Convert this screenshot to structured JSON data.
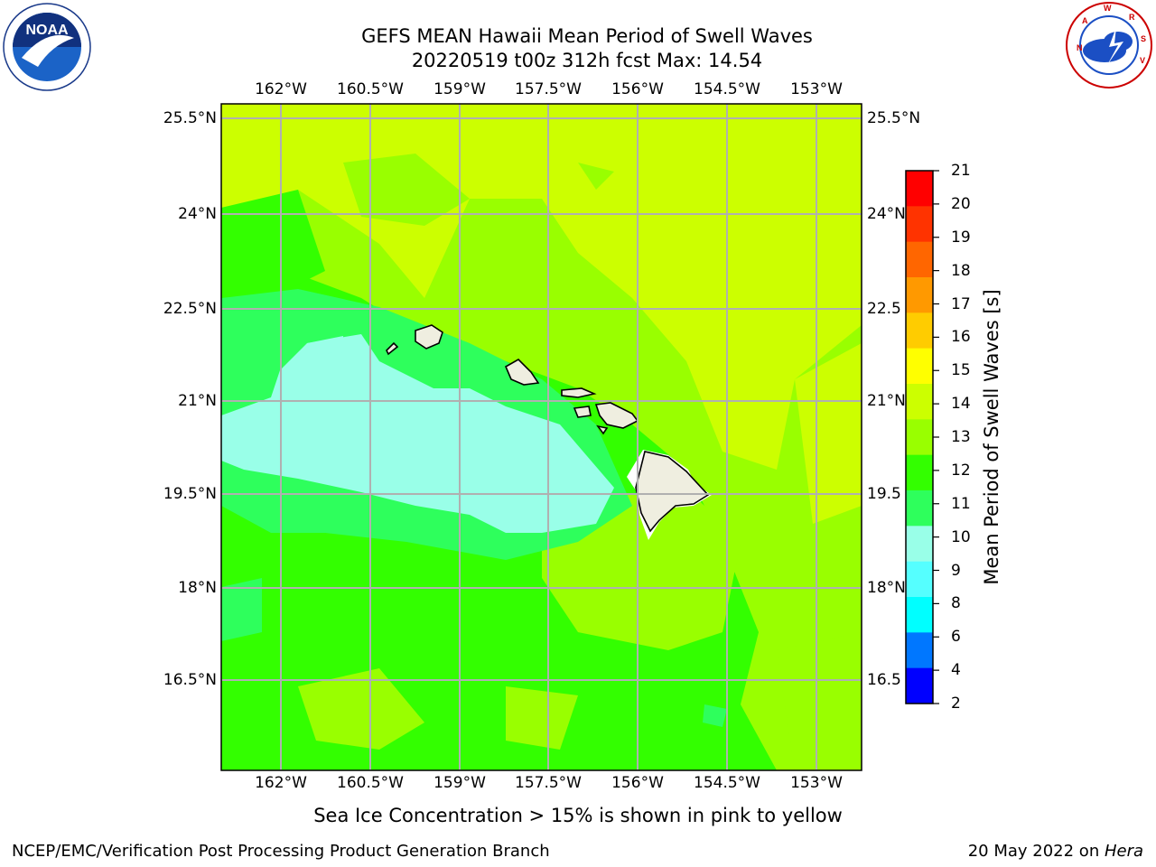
{
  "header": {
    "title_line1": "GEFS MEAN Hawaii Mean Period of Swell Waves",
    "title_line2": "20220519 t00z 312h fcst   Max: 14.54"
  },
  "logos": {
    "left": "NOAA",
    "left_ring_text": "NATIONAL OCEANIC AND ATMOSPHERIC ADMINISTRATION · U.S. DEPARTMENT OF COMMERCE",
    "right_ring_text": "NATIONAL WEATHER SERVICE"
  },
  "map": {
    "lon_ticks": [
      "162°W",
      "160.5°W",
      "159°W",
      "157.5°W",
      "156°W",
      "154.5°W",
      "153°W"
    ],
    "lat_ticks": [
      "25.5°N",
      "24°N",
      "22.5°N",
      "21°N",
      "19.5°N",
      "18°N",
      "16.5°N"
    ],
    "lat_ticks_right": [
      "25.5°N",
      "24°N",
      "22.5",
      "21°N",
      "19.5",
      "18°N",
      "16.5"
    ]
  },
  "colorbar": {
    "label": "Mean Period of Swell Waves [s]",
    "ticks": [
      "21",
      "20",
      "19",
      "18",
      "17",
      "16",
      "15",
      "14",
      "13",
      "12",
      "11",
      "10",
      "9",
      "8",
      "6",
      "4",
      "2"
    ],
    "colors": [
      "#ff0000",
      "#ff3300",
      "#ff6600",
      "#ff9900",
      "#ffcc00",
      "#ffff00",
      "#ccff00",
      "#99ff00",
      "#33ff00",
      "#2eff5c",
      "#99ffe8",
      "#55ffff",
      "#00ffff",
      "#0077ff",
      "#0000ff"
    ]
  },
  "caption": "Sea Ice Concentration > 15% is shown in pink to yellow",
  "footer": {
    "left": "NCEP/EMC/Verification Post Processing Product Generation Branch",
    "right_date": "20 May 2022 on ",
    "right_host": "Hera"
  }
}
